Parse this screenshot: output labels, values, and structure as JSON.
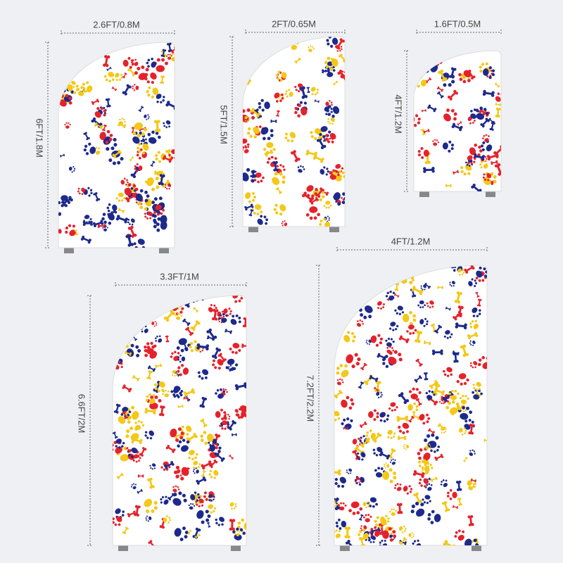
{
  "items": [
    {
      "width_label": "2.6FT/0.8M",
      "height_label": "6FT/1.8M"
    },
    {
      "width_label": "2FT/0.65M",
      "height_label": "5FT/1.5M"
    },
    {
      "width_label": "1.6FT/0.5M",
      "height_label": "4FT/1.2M"
    },
    {
      "width_label": "3.3FT/1M",
      "height_label": "6.6FT/2M"
    },
    {
      "width_label": "4FT/1.2M",
      "height_label": "7.2FT/2.2M"
    }
  ]
}
